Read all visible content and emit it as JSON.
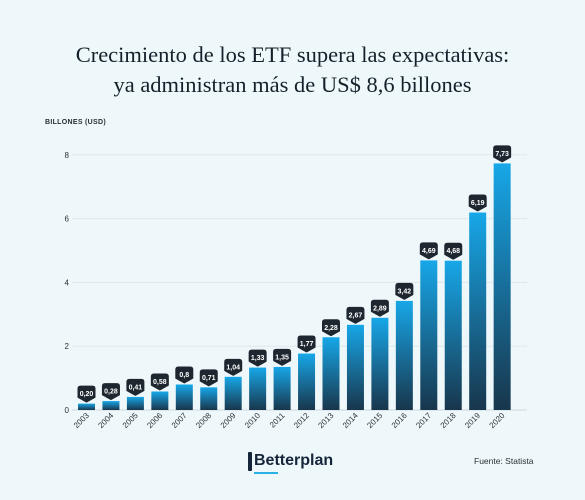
{
  "title_line1": "Crecimiento de los ETF supera las expectativas:",
  "title_line2": "ya administran más de US$ 8,6 billones",
  "brand": "Betterplan",
  "source": "Fuente: Statista",
  "colors": {
    "bar_top": "#17a7e8",
    "bar_bottom": "#18364c",
    "label_bg": "#1e2730",
    "background": "#eef8fb"
  },
  "chart_data": {
    "type": "bar",
    "ylabel": "BILLONES (USD)",
    "ylim": [
      0,
      8.6
    ],
    "yticks": [
      "0",
      "2",
      "4",
      "6",
      "8"
    ],
    "grid": true,
    "categories": [
      "2003",
      "2004",
      "2005",
      "2006",
      "2007",
      "2008",
      "2009",
      "2010",
      "2011",
      "2012",
      "2013",
      "2014",
      "2015",
      "2016",
      "2017",
      "2018",
      "2019",
      "2020"
    ],
    "values": [
      0.2,
      0.28,
      0.41,
      0.58,
      0.8,
      0.71,
      1.04,
      1.33,
      1.35,
      1.77,
      2.28,
      2.67,
      2.89,
      3.42,
      4.69,
      4.68,
      6.19,
      7.73
    ],
    "data_labels": [
      "0,20",
      "0,28",
      "0,41",
      "0,58",
      "0,8",
      "0,71",
      "1,04",
      "1,33",
      "1,35",
      "1,77",
      "2,28",
      "2,67",
      "2,89",
      "3,42",
      "4,69",
      "4,68",
      "6,19",
      "7,73"
    ]
  }
}
